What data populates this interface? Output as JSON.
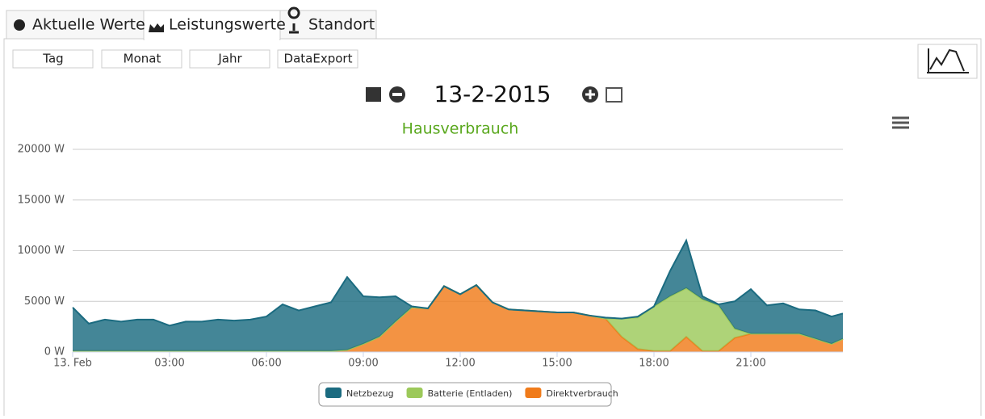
{
  "tabs": [
    "Aktuelle Werte",
    "Leistungswerte",
    "Standort"
  ],
  "buttons": [
    "Tag",
    "Monat",
    "Jahr",
    "DataExport"
  ],
  "date": "13-2-2015",
  "chart_data": {
    "type": "area",
    "stacked": true,
    "title": "Hausverbrauch",
    "x": [
      0,
      0.5,
      1,
      1.5,
      2,
      2.5,
      3,
      3.5,
      4,
      4.5,
      5,
      5.5,
      6,
      6.5,
      7,
      7.5,
      8,
      8.5,
      9,
      9.5,
      10,
      10.5,
      11,
      11.5,
      12,
      12.5,
      13,
      13.5,
      14,
      14.5,
      15,
      15.5,
      16,
      16.5,
      17,
      17.5,
      18,
      18.5,
      19,
      19.5,
      20,
      20.5,
      21,
      21.5,
      22,
      22.5,
      23,
      23.5,
      23.85
    ],
    "xlim": [
      0,
      23.85
    ],
    "xticks": [
      {
        "value": 0,
        "label": "13. Feb"
      },
      {
        "value": 3,
        "label": "03:00"
      },
      {
        "value": 6,
        "label": "06:00"
      },
      {
        "value": 9,
        "label": "09:00"
      },
      {
        "value": 12,
        "label": "12:00"
      },
      {
        "value": 15,
        "label": "15:00"
      },
      {
        "value": 18,
        "label": "18:00"
      },
      {
        "value": 21,
        "label": "21:00"
      }
    ],
    "ylim": [
      0,
      20000
    ],
    "yticks": [
      {
        "value": 0,
        "label": "0 W"
      },
      {
        "value": 5000,
        "label": "5000 W"
      },
      {
        "value": 10000,
        "label": "10000 W"
      },
      {
        "value": 15000,
        "label": "15000 W"
      },
      {
        "value": 20000,
        "label": "20000 W"
      }
    ],
    "grid": true,
    "legend": "bottom",
    "series": [
      {
        "name": "Netzbezug",
        "color": "#1b6b80",
        "values": [
          4300,
          2700,
          3100,
          2900,
          3100,
          3100,
          2500,
          2900,
          2900,
          3100,
          3000,
          3100,
          3400,
          4600,
          4000,
          4400,
          4800,
          7200,
          4700,
          3900,
          2500,
          100,
          0,
          0,
          0,
          0,
          0,
          0,
          0,
          0,
          0,
          0,
          0,
          100,
          0,
          100,
          0,
          2500,
          4700,
          300,
          100,
          2700,
          4400,
          2800,
          3000,
          2400,
          2800,
          2700,
          2500
        ]
      },
      {
        "name": "Batterie (Entladen)",
        "color": "#9cc95a",
        "values": [
          0,
          0,
          0,
          0,
          0,
          0,
          0,
          0,
          0,
          0,
          0,
          0,
          0,
          0,
          0,
          0,
          0,
          0,
          0,
          0,
          0,
          0,
          0,
          0,
          0,
          0,
          0,
          0,
          0,
          0,
          0,
          0,
          0,
          0,
          1800,
          3100,
          4400,
          5400,
          4800,
          5100,
          4500,
          900,
          0,
          0,
          0,
          0,
          0,
          0,
          0
        ]
      },
      {
        "name": "Direktverbrauch",
        "color": "#f07b1a",
        "values": [
          100,
          100,
          100,
          100,
          100,
          100,
          100,
          100,
          100,
          100,
          100,
          100,
          100,
          100,
          100,
          100,
          100,
          200,
          800,
          1500,
          3000,
          4400,
          4300,
          6500,
          5700,
          6600,
          4900,
          4200,
          4100,
          4000,
          3900,
          3900,
          3600,
          3300,
          1500,
          300,
          100,
          100,
          1500,
          100,
          100,
          1400,
          1800,
          1800,
          1800,
          1800,
          1300,
          800,
          1300
        ]
      }
    ]
  }
}
